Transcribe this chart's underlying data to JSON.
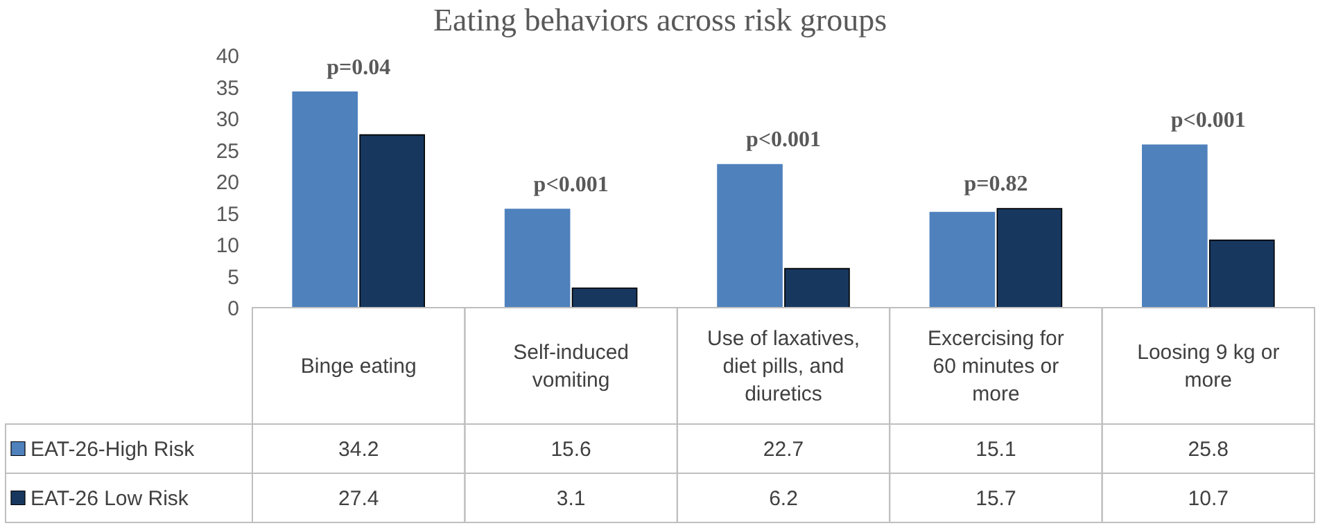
{
  "chart_data": {
    "type": "bar",
    "title": "Eating behaviors across risk groups",
    "categories": [
      "Binge eating",
      "Self-induced vomiting",
      "Use of laxatives, diet pills, and diuretics",
      "Excercising for 60 minutes or more",
      "Loosing 9 kg or more"
    ],
    "series": [
      {
        "name": "EAT-26-High Risk",
        "color": "#4f81bd",
        "values": [
          34.2,
          15.6,
          22.7,
          15.1,
          25.8
        ]
      },
      {
        "name": "EAT-26 Low Risk",
        "color": "#17375e",
        "values": [
          27.4,
          3.1,
          6.2,
          15.7,
          10.7
        ]
      }
    ],
    "ylim": [
      0,
      40
    ],
    "yticks": [
      0,
      5,
      10,
      15,
      20,
      25,
      30,
      35,
      40
    ],
    "data_labels": true,
    "legend": "bottom left",
    "annotations": [
      {
        "text": "p=0.04",
        "x": "Binge eating",
        "y": 34.2
      },
      {
        "text": "p<0.001",
        "x": "Self-induced vomiting",
        "y": 15.6
      },
      {
        "text": "p<0.001",
        "x": "Use of laxatives, diet pills, and diuretics",
        "y": 22.7
      },
      {
        "text": "p=0.82",
        "x": "Excercising for 60 minutes or more",
        "y": 15.7
      },
      {
        "text": "p<0.001",
        "x": "Loosing 9 kg or more",
        "y": 25.8
      }
    ]
  }
}
